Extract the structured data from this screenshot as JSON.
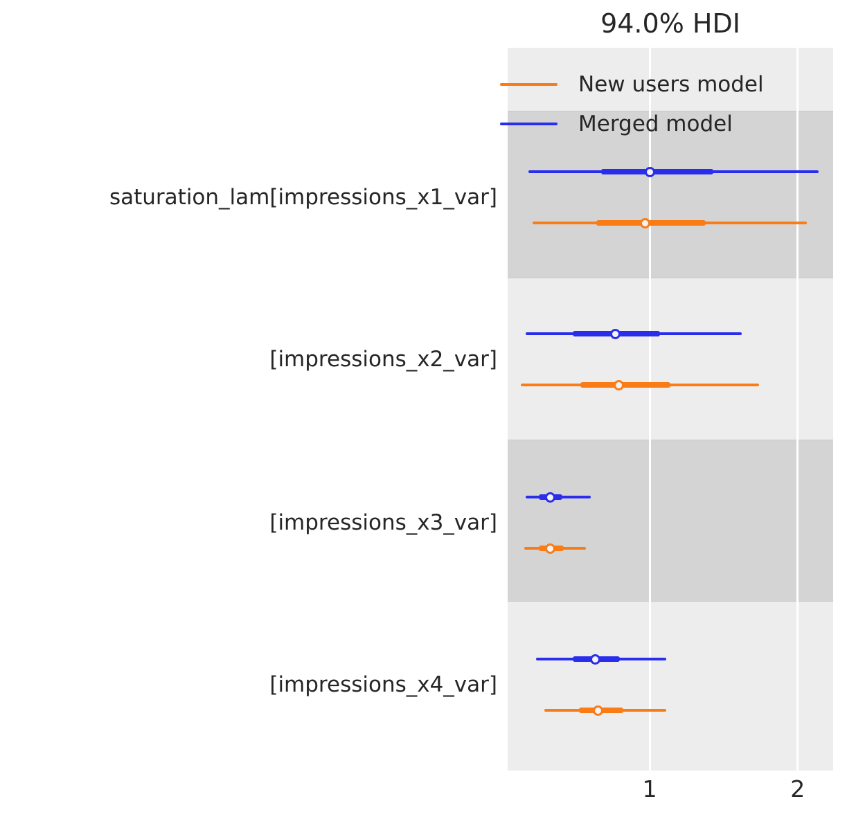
{
  "colors": {
    "background": "#ffffff",
    "band_light": "#ededed",
    "band_dark": "#d4d4d4",
    "gridline": "#ffffff",
    "text": "#262626",
    "marker_fill": "#f3f3f3",
    "orange": "#fa7c17",
    "blue": "#2a2eec"
  },
  "chart_data": {
    "type": "forest",
    "title": "94.0% HDI",
    "hdi_probability": 0.94,
    "xlabel": "",
    "ylabel": "",
    "xticks": [
      1,
      2
    ],
    "xlim": [
      0.04,
      2.24
    ],
    "grid": "white vertical gridlines over alternating gray row bands",
    "legend": {
      "position": "upper-left-inside",
      "entries": [
        {
          "label": "New users model",
          "color": "#fa7c17"
        },
        {
          "label": "Merged model",
          "color": "#2a2eec"
        }
      ]
    },
    "rows": [
      {
        "label": "saturation_lam[impressions_x1_var]",
        "band": "dark",
        "series": [
          {
            "model": "Merged model",
            "color": "#2a2eec",
            "hdi_94": [
              0.18,
              2.14
            ],
            "quartile_range": [
              0.67,
              1.43
            ],
            "median": 1.0
          },
          {
            "model": "New users model",
            "color": "#fa7c17",
            "hdi_94": [
              0.21,
              2.06
            ],
            "quartile_range": [
              0.64,
              1.38
            ],
            "median": 0.97
          }
        ]
      },
      {
        "label": "[impressions_x2_var]",
        "band": "light",
        "series": [
          {
            "model": "Merged model",
            "color": "#2a2eec",
            "hdi_94": [
              0.16,
              1.62
            ],
            "quartile_range": [
              0.48,
              1.07
            ],
            "median": 0.77
          },
          {
            "model": "New users model",
            "color": "#fa7c17",
            "hdi_94": [
              0.13,
              1.74
            ],
            "quartile_range": [
              0.53,
              1.14
            ],
            "median": 0.79
          }
        ]
      },
      {
        "label": "[impressions_x3_var]",
        "band": "dark",
        "series": [
          {
            "model": "Merged model",
            "color": "#2a2eec",
            "hdi_94": [
              0.16,
              0.6
            ],
            "quartile_range": [
              0.25,
              0.41
            ],
            "median": 0.33
          },
          {
            "model": "New users model",
            "color": "#fa7c17",
            "hdi_94": [
              0.15,
              0.57
            ],
            "quartile_range": [
              0.25,
              0.42
            ],
            "median": 0.33
          }
        ]
      },
      {
        "label": "[impressions_x4_var]",
        "band": "light",
        "series": [
          {
            "model": "Merged model",
            "color": "#2a2eec",
            "hdi_94": [
              0.23,
              1.11
            ],
            "quartile_range": [
              0.48,
              0.8
            ],
            "median": 0.63
          },
          {
            "model": "New users model",
            "color": "#fa7c17",
            "hdi_94": [
              0.29,
              1.11
            ],
            "quartile_range": [
              0.52,
              0.82
            ],
            "median": 0.65
          }
        ]
      }
    ]
  }
}
